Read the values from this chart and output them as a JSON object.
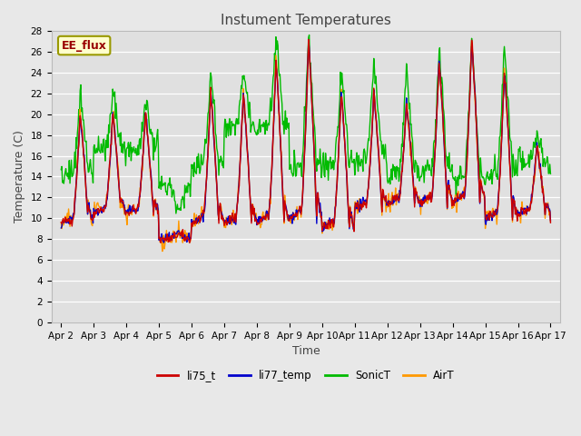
{
  "title": "Instument Temperatures",
  "xlabel": "Time",
  "ylabel": "Temperature (C)",
  "ylim": [
    0,
    28
  ],
  "x_tick_labels": [
    "Apr 2",
    "Apr 3",
    "Apr 4",
    "Apr 5",
    "Apr 6",
    "Apr 7",
    "Apr 8",
    "Apr 9",
    "Apr 10",
    "Apr 11",
    "Apr 12",
    "Apr 13",
    "Apr 14",
    "Apr 15",
    "Apr 16",
    "Apr 17"
  ],
  "background_color": "#e8e8e8",
  "plot_bg_color": "#e0e0e0",
  "grid_color": "#ffffff",
  "line_colors": {
    "li75_t": "#cc0000",
    "li77_temp": "#0000cc",
    "SonicT": "#00bb00",
    "AirT": "#ff9900"
  },
  "ee_flux_label": "EE_flux",
  "ee_flux_fg": "#990000",
  "ee_flux_bg": "#ffffcc",
  "ee_flux_border": "#999900",
  "title_fontsize": 11,
  "axis_label_fontsize": 9,
  "tick_fontsize": 7.5,
  "legend_fontsize": 8.5,
  "line_width": 1.0,
  "n_points": 721
}
